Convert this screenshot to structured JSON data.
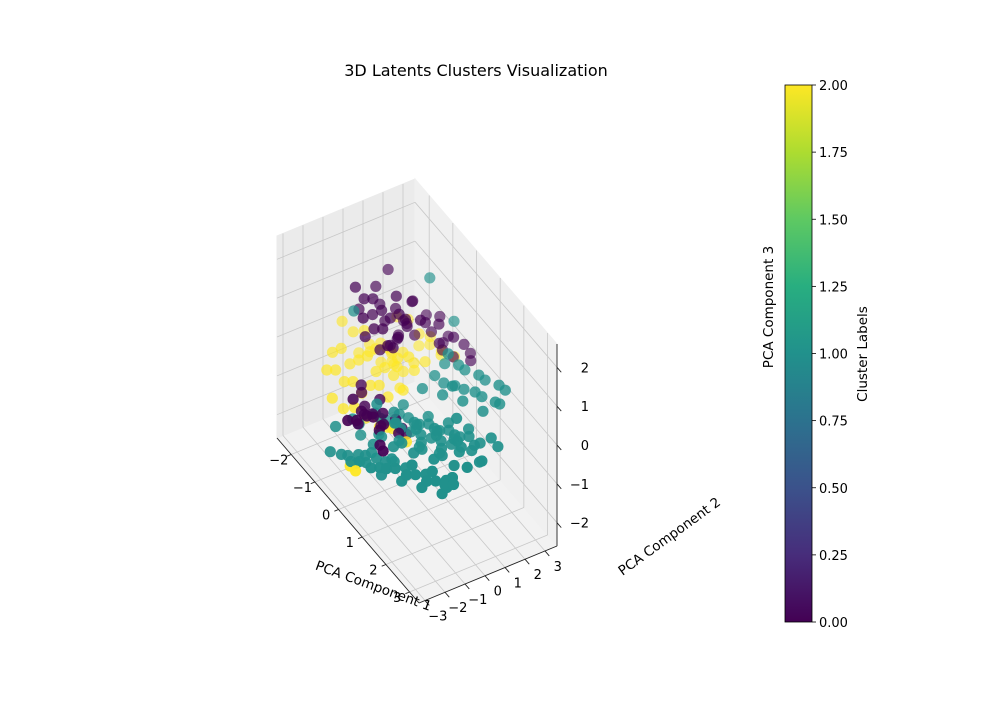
{
  "chart_data": {
    "type": "scatter",
    "projection": "3d",
    "title": "3D Latents Clusters Visualization",
    "xlabel": "PCA Component 1",
    "ylabel": "PCA Component 2",
    "zlabel": "PCA Component 3",
    "xlim": [
      -2.6,
      3.4
    ],
    "ylim": [
      -3.3,
      3.6
    ],
    "zlim": [
      -2.6,
      2.6
    ],
    "x_ticks": [
      -2,
      -1,
      0,
      1,
      2,
      3
    ],
    "x_tick_labels": [
      "−2",
      "−1",
      "0",
      "1",
      "2",
      "3"
    ],
    "y_ticks": [
      -3,
      -2,
      -1,
      0,
      1,
      2,
      3
    ],
    "y_tick_labels": [
      "−3",
      "−2",
      "−1",
      "0",
      "1",
      "2",
      "3"
    ],
    "z_ticks": [
      -2,
      -1,
      0,
      1,
      2
    ],
    "z_tick_labels": [
      "−2",
      "−1",
      "0",
      "1",
      "2"
    ],
    "grid": true,
    "colormap": "viridis",
    "colorbar": {
      "label": "Cluster Labels",
      "min": 0.0,
      "max": 2.0,
      "ticks": [
        0.0,
        0.25,
        0.5,
        0.75,
        1.0,
        1.25,
        1.5,
        1.75,
        2.0
      ],
      "tick_labels": [
        "0.00",
        "0.25",
        "0.50",
        "0.75",
        "1.00",
        "1.25",
        "1.50",
        "1.75",
        "2.00"
      ],
      "location": "right"
    },
    "series": [
      {
        "name": "Cluster 0",
        "label": 0,
        "color": "#440154",
        "x": [
          -1.4,
          -1.2,
          -1.0,
          -0.8,
          -0.6,
          -0.4,
          -0.9,
          -0.7,
          -0.5,
          -1.1,
          -1.3,
          -0.3,
          -0.2,
          -0.6,
          -0.8,
          -1.0,
          -0.4,
          -0.1,
          0.0,
          -0.5,
          -0.9,
          -1.2,
          -0.7,
          -0.3,
          0.1,
          -0.6,
          -0.2,
          -1.5,
          -0.4,
          -0.8,
          -0.5,
          -1.0,
          0.2,
          -0.3,
          -0.7,
          0.3,
          -0.1,
          -0.9,
          0.0,
          0.4,
          -0.6,
          -1.3,
          0.5,
          0.2,
          -0.4,
          0.6,
          0.1,
          -0.2,
          0.3,
          0.4,
          -1.1,
          -0.5,
          0.0,
          -0.8,
          0.5,
          -0.3,
          0.2,
          0.6,
          -0.6,
          0.1,
          -0.9,
          0.4,
          0.3,
          -0.1,
          0.7,
          -0.4,
          0.1,
          0.0,
          -0.2,
          0.2
        ],
        "y": [
          -0.8,
          -0.6,
          -0.4,
          -0.2,
          0.0,
          0.2,
          -1.0,
          -0.7,
          -0.5,
          -0.3,
          0.1,
          0.4,
          -0.6,
          0.3,
          0.5,
          0.2,
          0.6,
          -0.2,
          0.8,
          1.0,
          -0.9,
          0.6,
          1.2,
          1.4,
          1.6,
          1.8,
          2.0,
          -0.5,
          -0.1,
          0.9,
          1.1,
          1.3,
          1.5,
          1.7,
          -0.4,
          2.1,
          2.3,
          0.7,
          1.9,
          2.5,
          0.0,
          0.3,
          2.7,
          2.2,
          2.4,
          2.6,
          -1.2,
          -1.0,
          -0.8,
          -0.6,
          1.0,
          -1.4,
          -1.6,
          -1.2,
          -0.5,
          -1.8,
          -1.5,
          -1.0,
          -1.3,
          -2.0,
          -1.1,
          -1.7,
          -1.4,
          -2.2,
          -1.9,
          -2.1,
          -1.3,
          -2.4,
          -2.6,
          -1.8
        ],
        "z": [
          1.6,
          1.4,
          1.5,
          1.3,
          1.2,
          1.4,
          1.2,
          1.0,
          1.1,
          1.0,
          1.5,
          1.3,
          0.9,
          1.7,
          1.2,
          0.8,
          1.0,
          1.1,
          1.4,
          1.5,
          0.7,
          1.9,
          1.3,
          1.0,
          1.2,
          0.9,
          1.1,
          0.9,
          0.6,
          0.8,
          0.6,
          0.5,
          0.8,
          0.7,
          0.4,
          0.9,
          0.6,
          0.3,
          0.4,
          0.7,
          0.5,
          1.0,
          0.5,
          0.3,
          0.2,
          0.4,
          -0.5,
          -0.4,
          -0.6,
          -0.8,
          0.2,
          -0.7,
          -0.5,
          -0.6,
          -0.9,
          -0.6,
          -0.8,
          -0.7,
          -1.0,
          -0.4,
          -0.5,
          -1.0,
          -0.6,
          -0.7,
          -0.9,
          -0.3,
          -0.8,
          -0.5,
          -0.6,
          -0.4
        ]
      },
      {
        "name": "Cluster 1",
        "label": 1,
        "color": "#21918c",
        "x": [
          -1.3,
          -0.2,
          0.4,
          1.0,
          1.6,
          2.2,
          0.1,
          0.6,
          1.2,
          1.8,
          2.4,
          -0.5,
          0.2,
          0.8,
          1.4,
          2.0,
          2.6,
          -0.8,
          0.0,
          0.5,
          1.0,
          1.5,
          2.1,
          2.7,
          -0.3,
          0.3,
          0.9,
          1.3,
          1.9,
          2.5,
          3.0,
          -0.6,
          0.1,
          0.7,
          1.1,
          1.7,
          2.3,
          2.8,
          0.4,
          1.0,
          1.6,
          2.2,
          0.2,
          0.8,
          1.4,
          2.0,
          2.6,
          3.1,
          0.0,
          0.6,
          1.2,
          1.8,
          2.4,
          -0.4,
          0.3,
          0.9,
          1.5,
          2.1,
          2.9,
          0.5,
          1.1,
          1.7,
          2.3,
          -0.1,
          0.7,
          1.3,
          1.9,
          2.5,
          0.2,
          0.8,
          1.4,
          2.0,
          2.6,
          -0.2,
          0.4,
          1.0,
          1.6,
          2.2,
          2.8,
          0.6,
          1.2,
          1.8,
          2.4,
          0.1,
          0.7,
          1.3,
          1.9,
          3.0,
          0.3,
          0.9,
          1.5,
          2.1,
          2.7,
          -0.5,
          0.5,
          1.1,
          1.7,
          2.3,
          0.0,
          0.8,
          1.4,
          2.0,
          2.6,
          0.2,
          1.0,
          1.6,
          2.2,
          2.9,
          0.6,
          1.2,
          1.8,
          2.4,
          -0.3,
          0.4,
          1.0,
          1.6,
          2.1,
          2.7,
          0.9,
          1.5,
          2.0,
          2.5,
          1.3,
          1.9,
          2.4,
          3.1,
          1.1,
          1.7,
          2.3
        ],
        "y": [
          -1.0,
          1.5,
          2.0,
          1.0,
          0.5,
          0.0,
          -1.5,
          -1.2,
          -0.8,
          -0.5,
          -0.2,
          -2.0,
          -1.8,
          -1.5,
          -1.2,
          -0.9,
          -0.6,
          -2.5,
          -2.3,
          -2.0,
          -1.7,
          -1.4,
          -1.1,
          -0.8,
          -2.8,
          -2.6,
          -2.3,
          -2.0,
          -1.7,
          -1.4,
          -1.1,
          -3.0,
          -2.8,
          -2.5,
          -2.2,
          -1.9,
          -1.6,
          -1.3,
          -1.0,
          -0.7,
          -0.4,
          -0.1,
          -0.5,
          -0.2,
          0.1,
          0.4,
          0.7,
          1.0,
          -1.2,
          -0.9,
          -0.6,
          -0.3,
          0.0,
          -1.8,
          -1.5,
          -1.2,
          -0.9,
          -0.6,
          -0.3,
          0.3,
          0.6,
          0.9,
          1.2,
          -0.8,
          -0.5,
          -0.2,
          0.1,
          0.4,
          -2.2,
          -1.9,
          -1.6,
          -1.3,
          -1.0,
          -2.6,
          -2.4,
          -2.1,
          -1.8,
          -1.5,
          -1.2,
          0.8,
          1.1,
          1.4,
          1.7,
          -1.4,
          -1.1,
          -0.8,
          -0.5,
          0.2,
          -2.0,
          -1.7,
          -1.4,
          -1.1,
          -0.8,
          -1.6,
          -0.4,
          -0.1,
          0.2,
          0.5,
          -2.4,
          -2.1,
          -1.8,
          -1.5,
          -1.2,
          -0.3,
          0.0,
          0.3,
          0.6,
          0.9,
          1.3,
          1.6,
          1.9,
          2.2,
          -1.1,
          -0.9,
          -0.6,
          -0.3,
          0.0,
          0.3,
          0.9,
          1.2,
          1.5,
          1.8,
          -0.7,
          -0.4,
          -0.1,
          0.2,
          1.4,
          1.7,
          2.0
        ],
        "z": [
          1.1,
          2.2,
          1.4,
          1.2,
          0.9,
          0.6,
          -0.2,
          -0.4,
          -0.1,
          0.1,
          0.2,
          -0.9,
          -1.1,
          -0.8,
          -0.6,
          -0.4,
          -0.2,
          -1.2,
          -1.4,
          -1.2,
          -1.0,
          -0.8,
          -0.6,
          -0.4,
          -1.5,
          -1.3,
          -1.1,
          -0.9,
          -0.7,
          -0.5,
          -0.3,
          -1.6,
          -1.4,
          -1.2,
          -1.0,
          -0.8,
          -0.6,
          -0.4,
          -0.3,
          -0.2,
          0.0,
          0.2,
          -0.6,
          -0.5,
          -0.3,
          -0.1,
          0.1,
          0.3,
          -0.7,
          -0.6,
          -0.4,
          -0.2,
          0.0,
          -1.0,
          -0.9,
          -0.7,
          -0.5,
          -0.3,
          -0.1,
          0.1,
          0.3,
          0.5,
          0.6,
          -0.9,
          -0.7,
          -0.5,
          -0.3,
          -0.1,
          -1.3,
          -1.1,
          -0.9,
          -0.7,
          -0.5,
          -1.5,
          -1.3,
          -1.1,
          -0.9,
          -0.7,
          -0.5,
          0.4,
          0.5,
          0.7,
          0.8,
          -1.0,
          -0.8,
          -0.6,
          -0.4,
          0.0,
          -1.2,
          -1.0,
          -0.8,
          -0.6,
          -0.4,
          -1.4,
          -0.5,
          -0.3,
          -0.1,
          0.1,
          -1.6,
          -1.4,
          -1.2,
          -1.0,
          -0.8,
          -0.4,
          -0.2,
          0.0,
          0.2,
          0.4,
          0.6,
          0.8,
          0.9,
          1.0,
          -0.8,
          -0.6,
          -0.4,
          -0.2,
          0.0,
          0.2,
          0.4,
          0.6,
          0.7,
          0.8,
          -0.5,
          -0.3,
          -0.1,
          0.1,
          0.9,
          1.0,
          1.1
        ]
      },
      {
        "name": "Cluster 2",
        "label": 2,
        "color": "#fde725",
        "x": [
          -2.2,
          -2.0,
          -1.8,
          -1.6,
          -1.4,
          -1.2,
          -1.0,
          -0.8,
          -2.1,
          -1.9,
          -1.7,
          -1.5,
          -1.3,
          -1.1,
          -0.9,
          -0.7,
          -2.3,
          -2.0,
          -1.7,
          -1.4,
          -1.1,
          -0.8,
          -0.5,
          -1.9,
          -1.6,
          -1.3,
          -1.0,
          -0.7,
          -0.4,
          -2.1,
          -1.8,
          -1.5,
          -1.2,
          -0.9,
          -0.6,
          -1.7,
          -1.4,
          -1.1,
          -0.8,
          -0.5,
          -0.2,
          -1.5,
          -1.2,
          -0.9,
          -0.6,
          -0.3,
          -1.0,
          -0.7,
          -0.4,
          0.0,
          -0.3,
          0.1,
          0.5,
          -0.1,
          0.3,
          -1.6,
          -1.3,
          -1.0,
          -0.7,
          -0.4
        ],
        "y": [
          -1.0,
          -0.8,
          -0.6,
          -0.4,
          -0.2,
          0.0,
          0.2,
          0.4,
          -1.4,
          -1.2,
          -1.0,
          -0.8,
          -0.6,
          -0.4,
          -0.2,
          0.0,
          -0.4,
          -0.2,
          0.0,
          0.2,
          0.4,
          0.6,
          0.8,
          0.5,
          0.7,
          0.9,
          1.1,
          1.3,
          1.5,
          0.2,
          0.4,
          0.6,
          0.8,
          1.0,
          1.2,
          -1.6,
          -1.4,
          -1.2,
          -1.0,
          -0.8,
          -0.6,
          1.4,
          1.6,
          1.8,
          2.0,
          2.2,
          1.9,
          2.1,
          2.3,
          2.5,
          -0.9,
          -0.7,
          -0.5,
          -2.6,
          -2.8,
          1.2,
          1.0,
          0.8,
          0.6,
          0.4
        ],
        "z": [
          -0.6,
          -0.4,
          -0.7,
          -0.5,
          -0.3,
          -0.6,
          -0.4,
          -0.5,
          -0.9,
          -0.8,
          -1.0,
          -0.9,
          -1.1,
          -0.8,
          -0.7,
          -0.9,
          0.0,
          -0.1,
          0.1,
          -0.2,
          0.0,
          -0.1,
          0.1,
          -0.5,
          -0.3,
          -0.4,
          -0.2,
          -0.3,
          -0.1,
          -0.8,
          -0.6,
          -0.7,
          -0.5,
          -0.6,
          -0.4,
          -1.3,
          -1.4,
          -1.2,
          -1.3,
          -1.1,
          -1.2,
          0.3,
          0.4,
          0.2,
          0.3,
          0.1,
          -0.2,
          0.0,
          -0.1,
          0.1,
          -1.2,
          -1.0,
          -1.1,
          -1.7,
          -1.5,
          -0.6,
          -0.7,
          -0.5,
          -0.8,
          -0.6
        ]
      }
    ]
  }
}
